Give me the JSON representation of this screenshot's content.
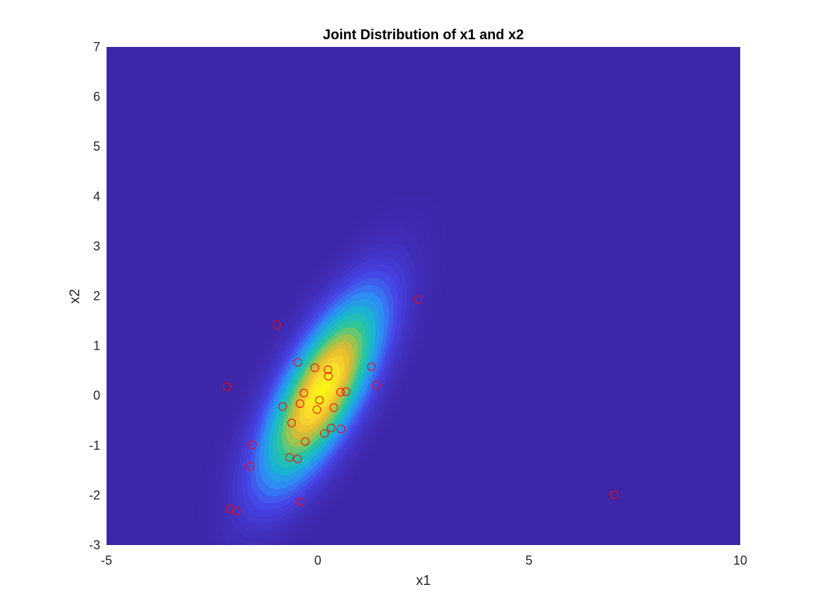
{
  "chart_data": {
    "type": "scatter",
    "title": "Joint Distribution of x1 and x2",
    "xlabel": "x1",
    "ylabel": "x2",
    "xlim": [
      -5,
      10
    ],
    "ylim": [
      -3,
      7
    ],
    "xticks": [
      -5,
      0,
      5,
      10
    ],
    "yticks": [
      -3,
      -2,
      -1,
      0,
      1,
      2,
      3,
      4,
      5,
      6,
      7
    ],
    "xtick_labels": [
      "-5",
      "0",
      "5",
      "10"
    ],
    "ytick_labels": [
      "-3",
      "-2",
      "-1",
      "0",
      "1",
      "2",
      "3",
      "4",
      "5",
      "6",
      "7"
    ],
    "grid": false,
    "background": {
      "type": "filled-contour",
      "description_of_density": "bivariate normal",
      "mean": [
        0.1,
        0.1
      ],
      "std": [
        0.9,
        1.2
      ],
      "correlation": 0.72,
      "colormap": [
        "#3e26a8",
        "#4743e6",
        "#2f8af7",
        "#19b5d2",
        "#2dc59b",
        "#91c653",
        "#e7b92f",
        "#fbda2c",
        "#f9f815"
      ]
    },
    "series": [
      {
        "marker": "open-circle",
        "color": "#ff0000",
        "points": [
          [
            -2.15,
            0.18
          ],
          [
            -2.08,
            -2.27
          ],
          [
            -1.93,
            -2.32
          ],
          [
            -1.55,
            -0.99
          ],
          [
            -1.6,
            -1.42
          ],
          [
            -0.97,
            1.42
          ],
          [
            -0.83,
            -0.22
          ],
          [
            -0.62,
            -0.55
          ],
          [
            -0.67,
            -1.24
          ],
          [
            -0.48,
            -1.27
          ],
          [
            -0.47,
            0.67
          ],
          [
            -0.42,
            -0.16
          ],
          [
            -0.42,
            -2.13
          ],
          [
            -0.33,
            0.05
          ],
          [
            -0.3,
            -0.92
          ],
          [
            -0.07,
            0.56
          ],
          [
            -0.02,
            -0.28
          ],
          [
            0.04,
            -0.09
          ],
          [
            0.16,
            -0.76
          ],
          [
            0.24,
            0.52
          ],
          [
            0.25,
            0.39
          ],
          [
            0.32,
            -0.65
          ],
          [
            0.38,
            -0.24
          ],
          [
            0.55,
            -0.67
          ],
          [
            0.54,
            0.07
          ],
          [
            0.67,
            0.08
          ],
          [
            1.27,
            0.58
          ],
          [
            1.39,
            0.21
          ],
          [
            2.37,
            1.93
          ],
          [
            7.02,
            -1.99
          ]
        ]
      }
    ]
  }
}
